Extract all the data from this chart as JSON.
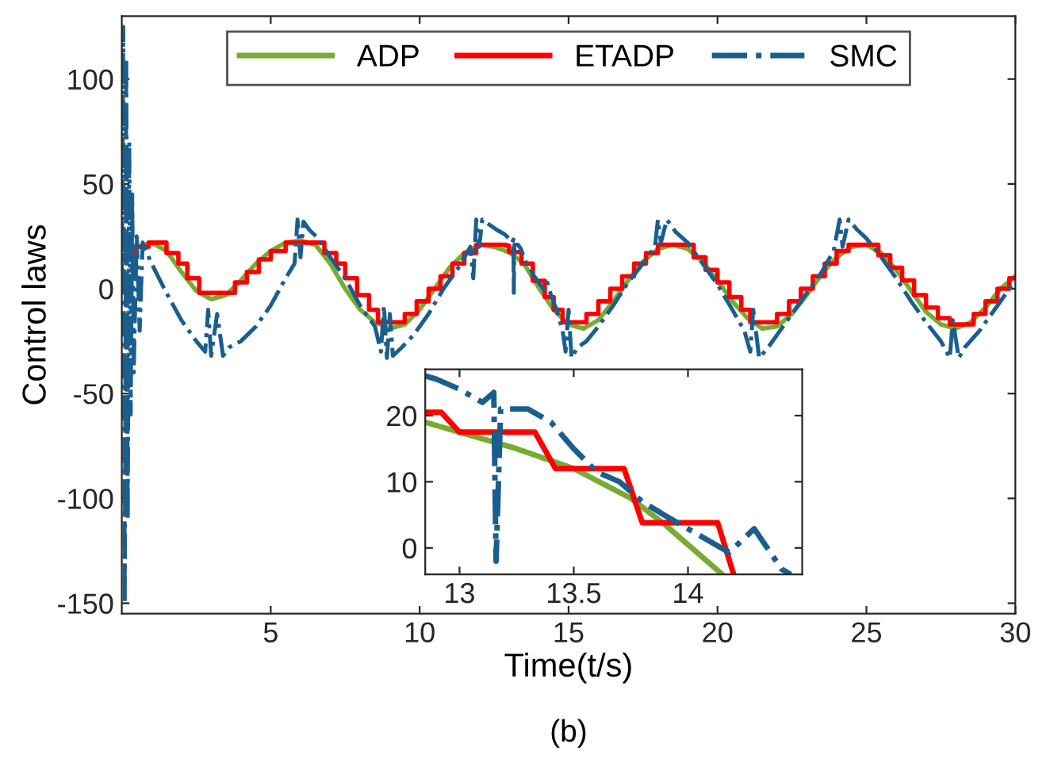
{
  "chart_data": [
    {
      "type": "line",
      "xlabel": "Time(t/s)",
      "ylabel": "Control laws",
      "annotations": [
        "(b)"
      ],
      "xlim": [
        0,
        30
      ],
      "xticks": [
        5,
        10,
        15,
        20,
        25,
        30
      ],
      "ylim": [
        -155,
        130
      ],
      "yticks": [
        -150,
        -100,
        -50,
        0,
        50,
        100
      ],
      "grid": false,
      "legend": "top",
      "marker": "none",
      "series": [
        {
          "name": "ADP",
          "color": "#77ac30",
          "line_style": "solid",
          "x": [
            0,
            0.5,
            1,
            1.5,
            2,
            2.5,
            3,
            3.5,
            4,
            4.5,
            5,
            5.5,
            6,
            6.5,
            7,
            7.5,
            8,
            8.5,
            9,
            9.5,
            10,
            10.5,
            11,
            11.5,
            12,
            12.5,
            13,
            13.5,
            14,
            14.5,
            15,
            15.5,
            16,
            16.5,
            17,
            17.5,
            18,
            18.5,
            19,
            19.5,
            20,
            20.5,
            21,
            21.5,
            22,
            22.5,
            23,
            23.5,
            24,
            24.5,
            25,
            25.5,
            26,
            26.5,
            27,
            27.5,
            28,
            28.5,
            29,
            29.5,
            30
          ],
          "values": [
            15,
            20,
            22,
            18,
            8,
            -1,
            -5,
            -3,
            4,
            12,
            18,
            22,
            23,
            21,
            12,
            0,
            -10,
            -16,
            -19,
            -17,
            -10,
            0,
            10,
            17,
            21,
            20,
            17.5,
            12,
            0.5,
            -10,
            -17,
            -19,
            -15,
            -6,
            4,
            13,
            19,
            21,
            19,
            13,
            4,
            -6,
            -14,
            -19,
            -18,
            -12,
            -3,
            7,
            15,
            20,
            21,
            17,
            9,
            -1,
            -11,
            -17,
            -19,
            -16,
            -9,
            0,
            6
          ]
        },
        {
          "name": "ETADP",
          "type": "step",
          "color": "#ff0000",
          "line_style": "solid",
          "x": [
            0,
            0.4,
            0.9,
            1.5,
            1.9,
            2.2,
            2.6,
            3.3,
            3.8,
            4.2,
            4.6,
            5.0,
            5.5,
            6.8,
            7.2,
            7.5,
            7.9,
            8.3,
            8.6,
            9.5,
            9.9,
            10.3,
            10.7,
            11.1,
            11.5,
            11.9,
            12.9,
            13.0,
            13.42,
            13.8,
            14.2,
            14.5,
            14.8,
            15.6,
            16.0,
            16.4,
            16.8,
            17.2,
            17.6,
            18.0,
            19.2,
            19.6,
            20.0,
            20.4,
            20.8,
            21.1,
            22.0,
            22.4,
            22.8,
            23.2,
            23.6,
            24.0,
            24.4,
            25.4,
            25.8,
            26.2,
            26.6,
            27.0,
            27.4,
            27.8,
            28.6,
            29.0,
            29.4,
            29.8,
            30
          ],
          "values": [
            15,
            20,
            22,
            17,
            12,
            5,
            -2,
            -2,
            3,
            8,
            14,
            18,
            22,
            17,
            12,
            5,
            -3,
            -10,
            -16,
            -12,
            -6,
            0,
            6,
            12,
            17,
            21,
            20.5,
            17.5,
            12,
            3.8,
            -4,
            -10,
            -16,
            -12,
            -6,
            0,
            6,
            12,
            17,
            21,
            15,
            9,
            3,
            -4,
            -10,
            -16,
            -12,
            -6,
            0,
            6,
            12,
            18,
            21,
            16,
            10,
            4,
            -3,
            -9,
            -14,
            -17,
            -12,
            -6,
            0,
            5,
            5
          ]
        },
        {
          "name": "SMC",
          "color": "#1a5e8e",
          "line_style": "dashed",
          "x": [
            0,
            0.05,
            0.1,
            0.15,
            0.2,
            0.25,
            0.3,
            0.35,
            0.4,
            0.5,
            0.6,
            0.7,
            1.0,
            1.5,
            2.0,
            2.5,
            2.8,
            2.9,
            3.0,
            3.2,
            3.4,
            3.6,
            4.0,
            4.5,
            5.0,
            5.5,
            5.8,
            5.9,
            6.0,
            6.1,
            6.3,
            6.6,
            7.0,
            7.5,
            8.0,
            8.5,
            8.7,
            8.8,
            8.9,
            9.0,
            9.1,
            9.4,
            9.8,
            10.3,
            10.8,
            11.3,
            11.7,
            11.8,
            11.9,
            12.0,
            12.1,
            12.4,
            12.6,
            12.85,
            13.0,
            13.1,
            13.15,
            13.16,
            13.18,
            13.3,
            13.4,
            13.5,
            13.6,
            13.7,
            13.8,
            13.9,
            14.18,
            14.29,
            14.41,
            14.6,
            14.8,
            14.9,
            15.0,
            15.1,
            15.3,
            15.6,
            16.0,
            16.5,
            17.0,
            17.5,
            17.9,
            18.0,
            18.1,
            18.3,
            18.6,
            19.0,
            19.5,
            20.0,
            20.5,
            20.9,
            21.1,
            21.2,
            21.4,
            21.7,
            22.0,
            22.5,
            23.0,
            23.5,
            23.9,
            24.1,
            24.2,
            24.4,
            24.7,
            25.0,
            25.5,
            26.0,
            26.5,
            27.0,
            27.5,
            27.8,
            27.9,
            28.1,
            28.3,
            28.8,
            29.3,
            29.8,
            30
          ],
          "values": [
            0,
            125,
            -150,
            110,
            -110,
            70,
            -60,
            45,
            -40,
            25,
            -20,
            22,
            12,
            -2,
            -15,
            -25,
            -30,
            -10,
            -32,
            -12,
            -32,
            -28,
            -25,
            -18,
            -8,
            5,
            12,
            33,
            15,
            32,
            28,
            24,
            15,
            5,
            -8,
            -18,
            -30,
            -8,
            -33,
            -12,
            -32,
            -28,
            -22,
            -12,
            0,
            10,
            20,
            5,
            33,
            20,
            33,
            30,
            28,
            26,
            24,
            22,
            23.5,
            -2,
            21,
            21,
            19,
            15,
            11.5,
            10,
            7,
            4.9,
            -0.7,
            2.9,
            -3.2,
            -10,
            -20,
            -30,
            -10,
            -33,
            -28,
            -25,
            -18,
            -8,
            3,
            12,
            20,
            33,
            22,
            33,
            27,
            22,
            12,
            2,
            -10,
            -20,
            -30,
            -10,
            -33,
            -28,
            -22,
            -12,
            -2,
            8,
            18,
            33,
            20,
            33,
            28,
            24,
            15,
            5,
            -6,
            -16,
            -25,
            -33,
            -15,
            -33,
            -28,
            -20,
            -10,
            0,
            3
          ]
        }
      ]
    },
    {
      "type": "line",
      "xlim": [
        12.85,
        14.5
      ],
      "xticks": [
        13,
        13.5,
        14
      ],
      "ylim": [
        -4,
        27
      ],
      "yticks": [
        0,
        10,
        20
      ],
      "grid": false,
      "marker": "none",
      "series": [
        {
          "color": "#77ac30",
          "line_style": "solid",
          "x": [
            12.85,
            13.0,
            13.25,
            13.5,
            13.75,
            13.9,
            14.0,
            14.15
          ],
          "values": [
            19,
            17.5,
            15,
            12,
            7.5,
            3.5,
            0.5,
            -4
          ]
        },
        {
          "color": "#ff0000",
          "line_style": "solid",
          "x": [
            12.85,
            12.92,
            13.0,
            13.33,
            13.42,
            13.72,
            13.8,
            14.13,
            14.2
          ],
          "values": [
            20.5,
            20.5,
            17.5,
            17.5,
            12,
            12,
            3.8,
            3.8,
            -4
          ]
        },
        {
          "color": "#1a5e8e",
          "line_style": "dashed",
          "x": [
            12.85,
            12.9,
            13.0,
            13.1,
            13.15,
            13.16,
            13.18,
            13.3,
            13.4,
            13.5,
            13.6,
            13.7,
            13.8,
            13.9,
            14.18,
            14.29,
            14.41,
            14.45
          ],
          "values": [
            26,
            25.5,
            24,
            22,
            23.5,
            -2,
            21,
            21,
            19,
            15,
            11.5,
            10,
            7,
            4.9,
            -0.7,
            2.9,
            -3.2,
            -4
          ]
        }
      ]
    }
  ]
}
